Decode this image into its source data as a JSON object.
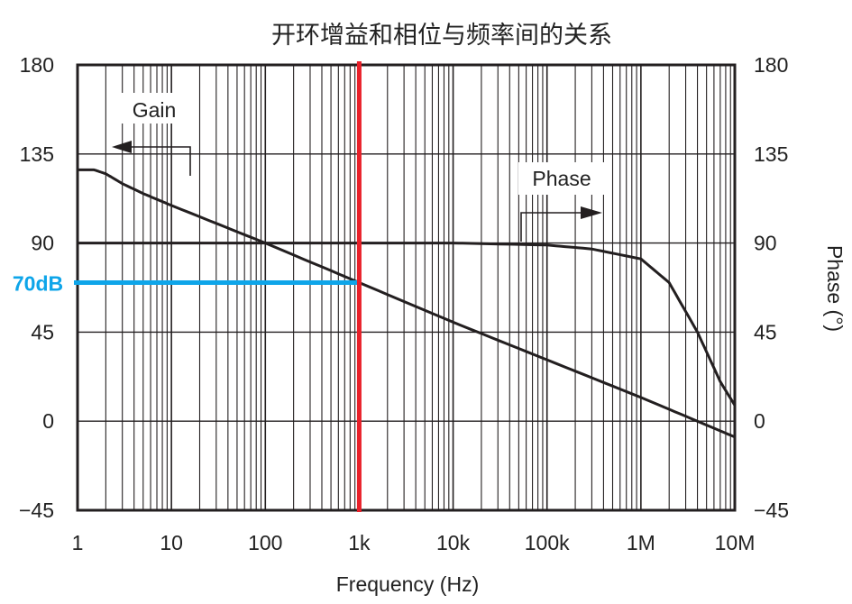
{
  "chart_data": {
    "type": "line",
    "title": "开环增益和相位与频率间的关系",
    "xlabel": "Frequency (Hz)",
    "ylabel_right": "Phase (°)",
    "xscale": "log",
    "xlim": [
      1,
      10000000
    ],
    "ylim": [
      -45,
      180
    ],
    "x_ticks": [
      {
        "value": 1,
        "label": "1"
      },
      {
        "value": 10,
        "label": "10"
      },
      {
        "value": 100,
        "label": "100"
      },
      {
        "value": 1000,
        "label": "1k"
      },
      {
        "value": 10000,
        "label": "10k"
      },
      {
        "value": 100000,
        "label": "100k"
      },
      {
        "value": 1000000,
        "label": "1M"
      },
      {
        "value": 10000000,
        "label": "10M"
      }
    ],
    "y_ticks": [
      {
        "value": 180,
        "label": "180"
      },
      {
        "value": 135,
        "label": "135"
      },
      {
        "value": 90,
        "label": "90"
      },
      {
        "value": 45,
        "label": "45"
      },
      {
        "value": 0,
        "label": "0"
      },
      {
        "value": -45,
        "label": "−45"
      }
    ],
    "grid": true,
    "series": [
      {
        "name": "Gain",
        "unit": "dB",
        "x": [
          1,
          1.5,
          2,
          3,
          5,
          10,
          100,
          1000,
          10000,
          100000,
          1000000,
          4000000,
          10000000
        ],
        "y": [
          127,
          127,
          125,
          120,
          115,
          109,
          90,
          70,
          50,
          31,
          12,
          0,
          -8
        ]
      },
      {
        "name": "Phase",
        "unit": "°",
        "x": [
          1,
          10000,
          100000,
          300000,
          1000000,
          2000000,
          4000000,
          7000000,
          10000000
        ],
        "y": [
          90,
          90,
          89,
          87,
          82,
          70,
          45,
          20,
          8
        ]
      }
    ],
    "annotations": {
      "gain_label": "Gain",
      "phase_label": "Phase",
      "marker_frequency": 1000,
      "marker_gain": 70,
      "marker_label": "70dB"
    },
    "colors": {
      "marker_vertical": "#e8202a",
      "marker_horizontal": "#0ea5e9",
      "curve": "#231f20"
    }
  }
}
